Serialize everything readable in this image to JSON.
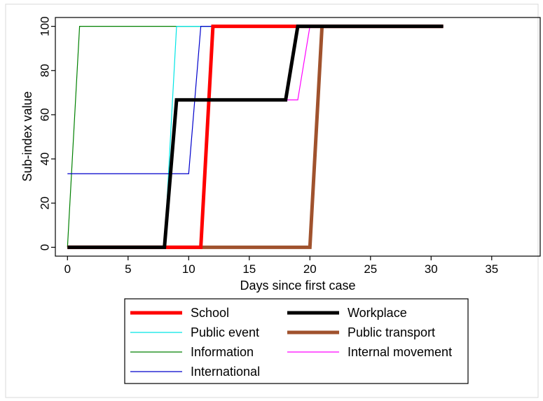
{
  "chart_data": {
    "type": "line",
    "xlabel": "Days since first case",
    "ylabel": "Sub-index value",
    "xlim": [
      -1,
      39
    ],
    "ylim": [
      -4,
      104
    ],
    "xticks": [
      0,
      5,
      10,
      15,
      20,
      25,
      30,
      35
    ],
    "yticks": [
      0,
      20,
      40,
      60,
      80,
      100
    ],
    "grid": false,
    "legend_position": "bottom",
    "series": [
      {
        "name": "School",
        "color": "#ff0000",
        "width": 5,
        "points": [
          [
            0,
            0
          ],
          [
            11,
            0
          ],
          [
            12,
            100
          ],
          [
            31,
            100
          ]
        ]
      },
      {
        "name": "Workplace",
        "color": "#000000",
        "width": 5,
        "points": [
          [
            0,
            0
          ],
          [
            8,
            0
          ],
          [
            9,
            66.7
          ],
          [
            18,
            66.7
          ],
          [
            19,
            100
          ],
          [
            31,
            100
          ]
        ]
      },
      {
        "name": "Public event",
        "color": "#00e5e5",
        "width": 1.2,
        "points": [
          [
            0,
            0
          ],
          [
            8,
            0
          ],
          [
            9,
            100
          ],
          [
            31,
            100
          ]
        ]
      },
      {
        "name": "Public transport",
        "color": "#a0522d",
        "width": 5,
        "points": [
          [
            0,
            0
          ],
          [
            20,
            0
          ],
          [
            21,
            100
          ],
          [
            31,
            100
          ]
        ]
      },
      {
        "name": "Information",
        "color": "#008000",
        "width": 1.2,
        "points": [
          [
            0,
            0
          ],
          [
            1,
            100
          ],
          [
            31,
            100
          ]
        ]
      },
      {
        "name": "Internal movement",
        "color": "#ff00ff",
        "width": 1.2,
        "points": [
          [
            0,
            0
          ],
          [
            8,
            0
          ],
          [
            9,
            66.7
          ],
          [
            19,
            66.7
          ],
          [
            20,
            100
          ],
          [
            31,
            100
          ]
        ]
      },
      {
        "name": "International",
        "color": "#0000cc",
        "width": 1.2,
        "points": [
          [
            0,
            33.3
          ],
          [
            10,
            33.3
          ],
          [
            11,
            100
          ],
          [
            31,
            100
          ]
        ]
      }
    ]
  }
}
